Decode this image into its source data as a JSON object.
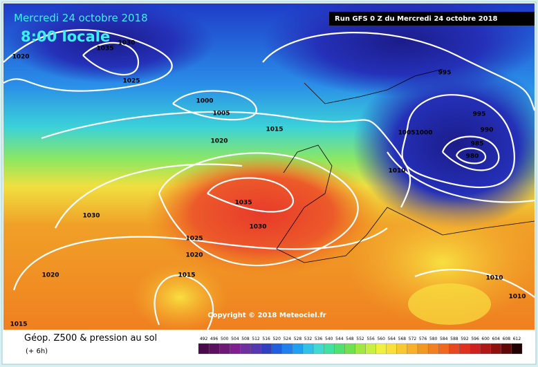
{
  "header": {
    "date": "Mercredi 24 octobre 2018",
    "time": "8:00 locale",
    "run": "Run GFS 0 Z du Mercredi 24 octobre 2018"
  },
  "isobar_labels": [
    "1020",
    "1035",
    "1030",
    "1025",
    "1000",
    "1005",
    "1015",
    "1020",
    "995",
    "995",
    "990",
    "985",
    "980",
    "1005",
    "1000",
    "1010",
    "1035",
    "1030",
    "1030",
    "1025",
    "1020",
    "1015",
    "1020",
    "1015",
    "1010",
    "1010"
  ],
  "copyright": "Copyright © 2018 Meteociel.fr",
  "legend": {
    "title": "Géop. Z500 & pression au sol",
    "subtitle": "(+ 6h)",
    "scale": [
      492,
      496,
      500,
      504,
      508,
      512,
      516,
      520,
      524,
      528,
      532,
      536,
      540,
      544,
      548,
      552,
      556,
      560,
      564,
      568,
      572,
      576,
      580,
      584,
      588,
      592,
      596,
      600,
      604,
      608,
      612
    ]
  }
}
